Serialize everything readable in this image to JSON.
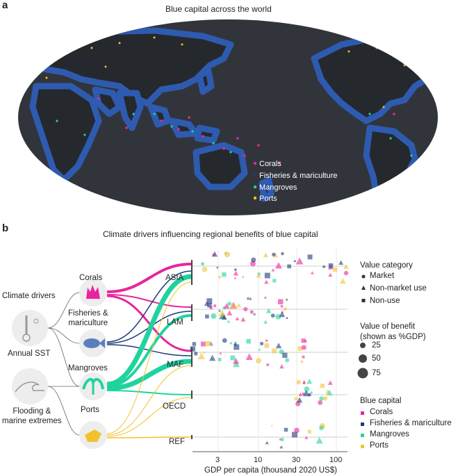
{
  "panel_a": {
    "letter": "a",
    "title": "Blue capital across the world",
    "legend": [
      {
        "label": "Corals",
        "color": "#e8259d"
      },
      {
        "label": "Fisheries & mariculture",
        "color": "#1e3a7a"
      },
      {
        "label": "Mangroves",
        "color": "#1fd39f"
      },
      {
        "label": "Ports",
        "color": "#f2c12e"
      }
    ]
  },
  "panel_b": {
    "letter": "b",
    "title": "Climate drivers influencing regional benefits of blue capital",
    "drivers_heading": "Climate drivers",
    "drivers": [
      "Annual SST",
      "Flooding &\nmarine extremes"
    ],
    "capitals": [
      "Corals",
      "Fisheries &\nmariculture",
      "Mangroves",
      "Ports"
    ],
    "regions": [
      "ASIA",
      "LAM",
      "MAF",
      "OECD",
      "REF"
    ],
    "value_category": {
      "title": "Value category",
      "items": [
        {
          "label": "Market",
          "shape": "circle"
        },
        {
          "label": "Non-market use",
          "shape": "triangle"
        },
        {
          "label": "Non-use",
          "shape": "square"
        }
      ]
    },
    "value_benefit": {
      "title": "Value of benefit\n(shown as %GDP)",
      "items": [
        "25",
        "50",
        "75"
      ]
    },
    "blue_capital": {
      "title": "Blue capital",
      "items": [
        {
          "label": "Corals",
          "color": "#e8259d"
        },
        {
          "label": "Fisheries & mariculture",
          "color": "#1e3a7a"
        },
        {
          "label": "Mangroves",
          "color": "#1fd39f"
        },
        {
          "label": "Ports",
          "color": "#f2c12e"
        }
      ]
    },
    "xaxis": {
      "label": "GDP per capita (thousand 2020 US$)",
      "ticks": [
        "3",
        "10",
        "30",
        "100"
      ]
    }
  }
}
